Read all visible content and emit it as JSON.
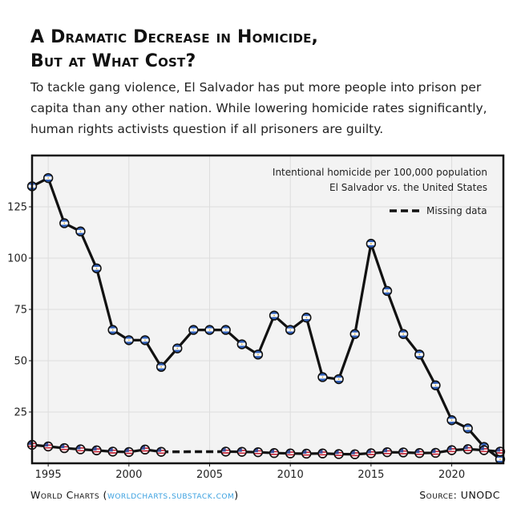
{
  "title_line1": "A Dramatic Decrease in Homicide,",
  "title_line2": "But at What Cost?",
  "subtitle": "To tackle gang violence, El Salvador has put more people into prison per capita than any other nation. While lowering homicide rates significantly, human rights activists question if all prisoners are guilty.",
  "footer": {
    "left_prefix": "World Charts (",
    "left_link": "worldcharts.substack.com",
    "left_suffix": ")",
    "right": "Source: UNODC"
  },
  "colors": {
    "line": "#111111",
    "plot_bg": "#f3f3f3",
    "grid": "#dddddd",
    "elsalvador_blue": "#2f5fb8",
    "us_red": "#c8283a",
    "us_blue": "#3a4f9a"
  },
  "chart_data": {
    "type": "line",
    "title": "Intentional homicide per 100,000 population",
    "subtitle": "El Salvador vs. the United States",
    "legend_missing": "Missing data",
    "xlim": [
      1994,
      2023.2
    ],
    "ylim": [
      0,
      150
    ],
    "xticks": [
      1995,
      2000,
      2005,
      2010,
      2015,
      2020
    ],
    "yticks": [
      25,
      50,
      75,
      100,
      125
    ],
    "grid": true,
    "series": [
      {
        "name": "El Salvador",
        "marker": "el-salvador-flag",
        "x": [
          1994,
          1995,
          1996,
          1997,
          1998,
          1999,
          2000,
          2001,
          2002,
          2003,
          2004,
          2005,
          2006,
          2007,
          2008,
          2009,
          2010,
          2011,
          2012,
          2013,
          2014,
          2015,
          2016,
          2017,
          2018,
          2019,
          2020,
          2021,
          2022,
          2023
        ],
        "values": [
          135,
          139,
          117,
          113,
          95,
          65,
          60,
          60,
          47,
          56,
          65,
          65,
          65,
          58,
          53,
          72,
          65,
          71,
          42,
          41,
          63,
          107,
          84,
          63,
          53,
          38,
          21,
          17,
          8,
          2
        ]
      },
      {
        "name": "United States",
        "marker": "us-flag",
        "x": [
          1994,
          1995,
          1996,
          1997,
          1998,
          1999,
          2000,
          2001,
          2002,
          2006,
          2007,
          2008,
          2009,
          2010,
          2011,
          2012,
          2013,
          2014,
          2015,
          2016,
          2017,
          2018,
          2019,
          2020,
          2021,
          2022,
          2023
        ],
        "values": [
          9,
          8.2,
          7.4,
          6.8,
          6.3,
          5.7,
          5.5,
          6.7,
          5.6,
          5.7,
          5.6,
          5.4,
          5.0,
          4.8,
          4.7,
          4.8,
          4.5,
          4.4,
          4.9,
          5.4,
          5.3,
          5.0,
          5.1,
          6.4,
          6.9,
          6.4,
          5.7
        ],
        "missing_segment": [
          2002,
          2006
        ]
      }
    ]
  }
}
